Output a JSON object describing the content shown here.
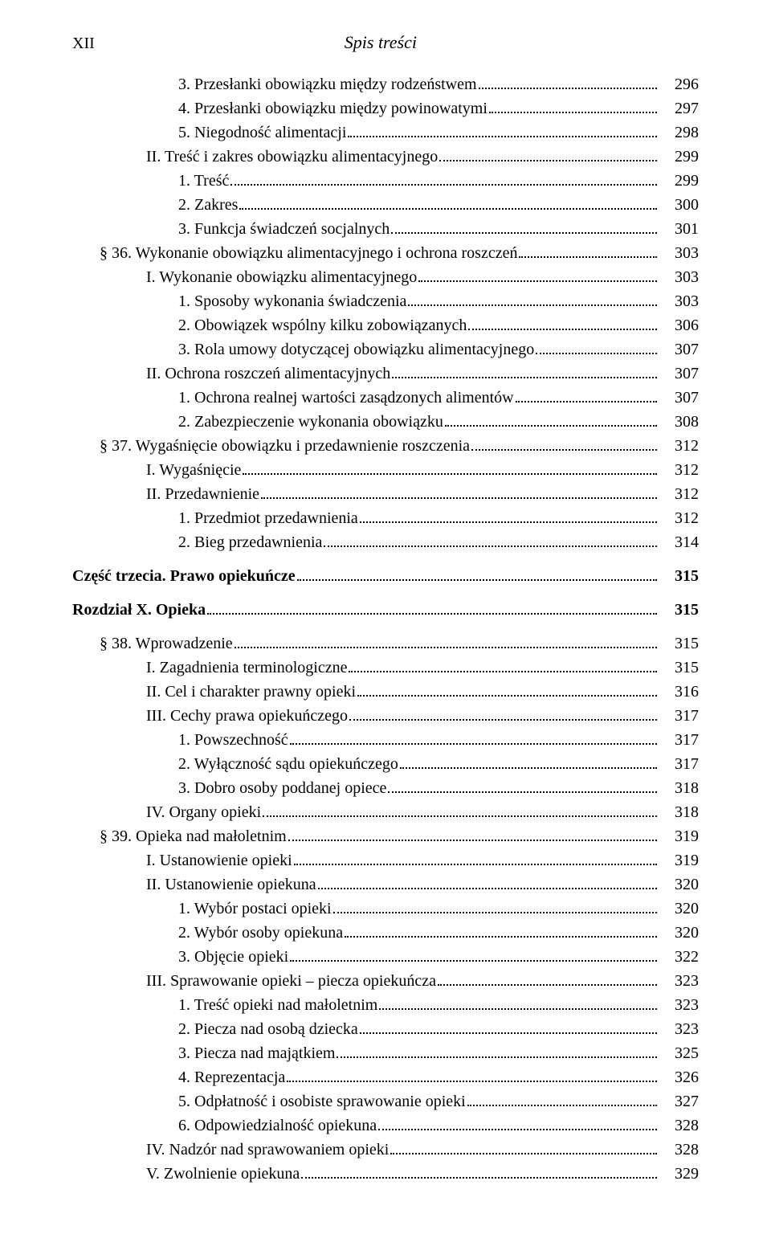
{
  "header": {
    "page_number": "XII",
    "title": "Spis treści"
  },
  "toc": [
    {
      "indent": 3,
      "label": "3. Przesłanki obowiązku między rodzeństwem",
      "page": "296"
    },
    {
      "indent": 3,
      "label": "4. Przesłanki obowiązku między powinowatymi",
      "page": "297"
    },
    {
      "indent": 3,
      "label": "5. Niegodność alimentacji",
      "page": "298"
    },
    {
      "indent": 2,
      "label": "II. Treść i zakres obowiązku alimentacyjnego",
      "page": "299"
    },
    {
      "indent": 3,
      "label": "1. Treść",
      "page": "299"
    },
    {
      "indent": 3,
      "label": "2. Zakres",
      "page": "300"
    },
    {
      "indent": 3,
      "label": "3. Funkcja świadczeń socjalnych",
      "page": "301"
    },
    {
      "indent": 1,
      "label": "§ 36. Wykonanie obowiązku alimentacyjnego i ochrona roszczeń",
      "page": "303"
    },
    {
      "indent": 2,
      "label": "I. Wykonanie obowiązku alimentacyjnego",
      "page": "303"
    },
    {
      "indent": 3,
      "label": "1. Sposoby wykonania świadczenia",
      "page": "303"
    },
    {
      "indent": 3,
      "label": "2. Obowiązek wspólny kilku zobowiązanych",
      "page": "306"
    },
    {
      "indent": 3,
      "label": "3. Rola umowy dotyczącej obowiązku alimentacyjnego",
      "page": "307"
    },
    {
      "indent": 2,
      "label": "II. Ochrona roszczeń alimentacyjnych",
      "page": "307"
    },
    {
      "indent": 3,
      "label": "1. Ochrona realnej wartości zasądzonych alimentów",
      "page": "307"
    },
    {
      "indent": 3,
      "label": "2. Zabezpieczenie wykonania obowiązku",
      "page": "308"
    },
    {
      "indent": 1,
      "label": "§ 37. Wygaśnięcie obowiązku i przedawnienie roszczenia",
      "page": "312"
    },
    {
      "indent": 2,
      "label": "I. Wygaśnięcie",
      "page": "312"
    },
    {
      "indent": 2,
      "label": "II. Przedawnienie",
      "page": "312"
    },
    {
      "indent": 3,
      "label": "1. Przedmiot przedawnienia",
      "page": "312"
    },
    {
      "indent": 3,
      "label": "2. Bieg przedawnienia",
      "page": "314"
    },
    {
      "spacer": true
    },
    {
      "indent": 0,
      "bold": true,
      "label": "Część trzecia. Prawo opiekuńcze",
      "page": "315"
    },
    {
      "spacer": true
    },
    {
      "indent": 0,
      "bold": true,
      "label": "Rozdział X. Opieka",
      "page": "315"
    },
    {
      "spacer": true
    },
    {
      "indent": 1,
      "label": "§ 38. Wprowadzenie",
      "page": "315"
    },
    {
      "indent": 2,
      "label": "I. Zagadnienia terminologiczne",
      "page": "315"
    },
    {
      "indent": 2,
      "label": "II. Cel i charakter prawny opieki",
      "page": "316"
    },
    {
      "indent": 2,
      "label": "III. Cechy prawa opiekuńczego",
      "page": "317"
    },
    {
      "indent": 3,
      "label": "1. Powszechność",
      "page": "317"
    },
    {
      "indent": 3,
      "label": "2. Wyłączność sądu opiekuńczego",
      "page": "317"
    },
    {
      "indent": 3,
      "label": "3. Dobro osoby poddanej opiece",
      "page": "318"
    },
    {
      "indent": 2,
      "label": "IV. Organy opieki",
      "page": "318"
    },
    {
      "indent": 1,
      "label": "§ 39. Opieka nad małoletnim",
      "page": "319"
    },
    {
      "indent": 2,
      "label": "I. Ustanowienie opieki",
      "page": "319"
    },
    {
      "indent": 2,
      "label": "II. Ustanowienie opiekuna",
      "page": "320"
    },
    {
      "indent": 3,
      "label": "1. Wybór postaci opieki",
      "page": "320"
    },
    {
      "indent": 3,
      "label": "2. Wybór osoby opiekuna",
      "page": "320"
    },
    {
      "indent": 3,
      "label": "3. Objęcie opieki",
      "page": "322"
    },
    {
      "indent": 2,
      "label": "III. Sprawowanie opieki – piecza opiekuńcza",
      "page": "323"
    },
    {
      "indent": 3,
      "label": "1. Treść opieki nad małoletnim",
      "page": "323"
    },
    {
      "indent": 3,
      "label": "2. Piecza nad osobą dziecka",
      "page": "323"
    },
    {
      "indent": 3,
      "label": "3. Piecza nad majątkiem",
      "page": "325"
    },
    {
      "indent": 3,
      "label": "4. Reprezentacja",
      "page": "326"
    },
    {
      "indent": 3,
      "label": "5. Odpłatność i osobiste sprawowanie opieki",
      "page": "327"
    },
    {
      "indent": 3,
      "label": "6. Odpowiedzialność opiekuna",
      "page": "328"
    },
    {
      "indent": 2,
      "label": "IV. Nadzór nad sprawowaniem opieki",
      "page": "328"
    },
    {
      "indent": 2,
      "label": "V. Zwolnienie opiekuna",
      "page": "329"
    }
  ]
}
